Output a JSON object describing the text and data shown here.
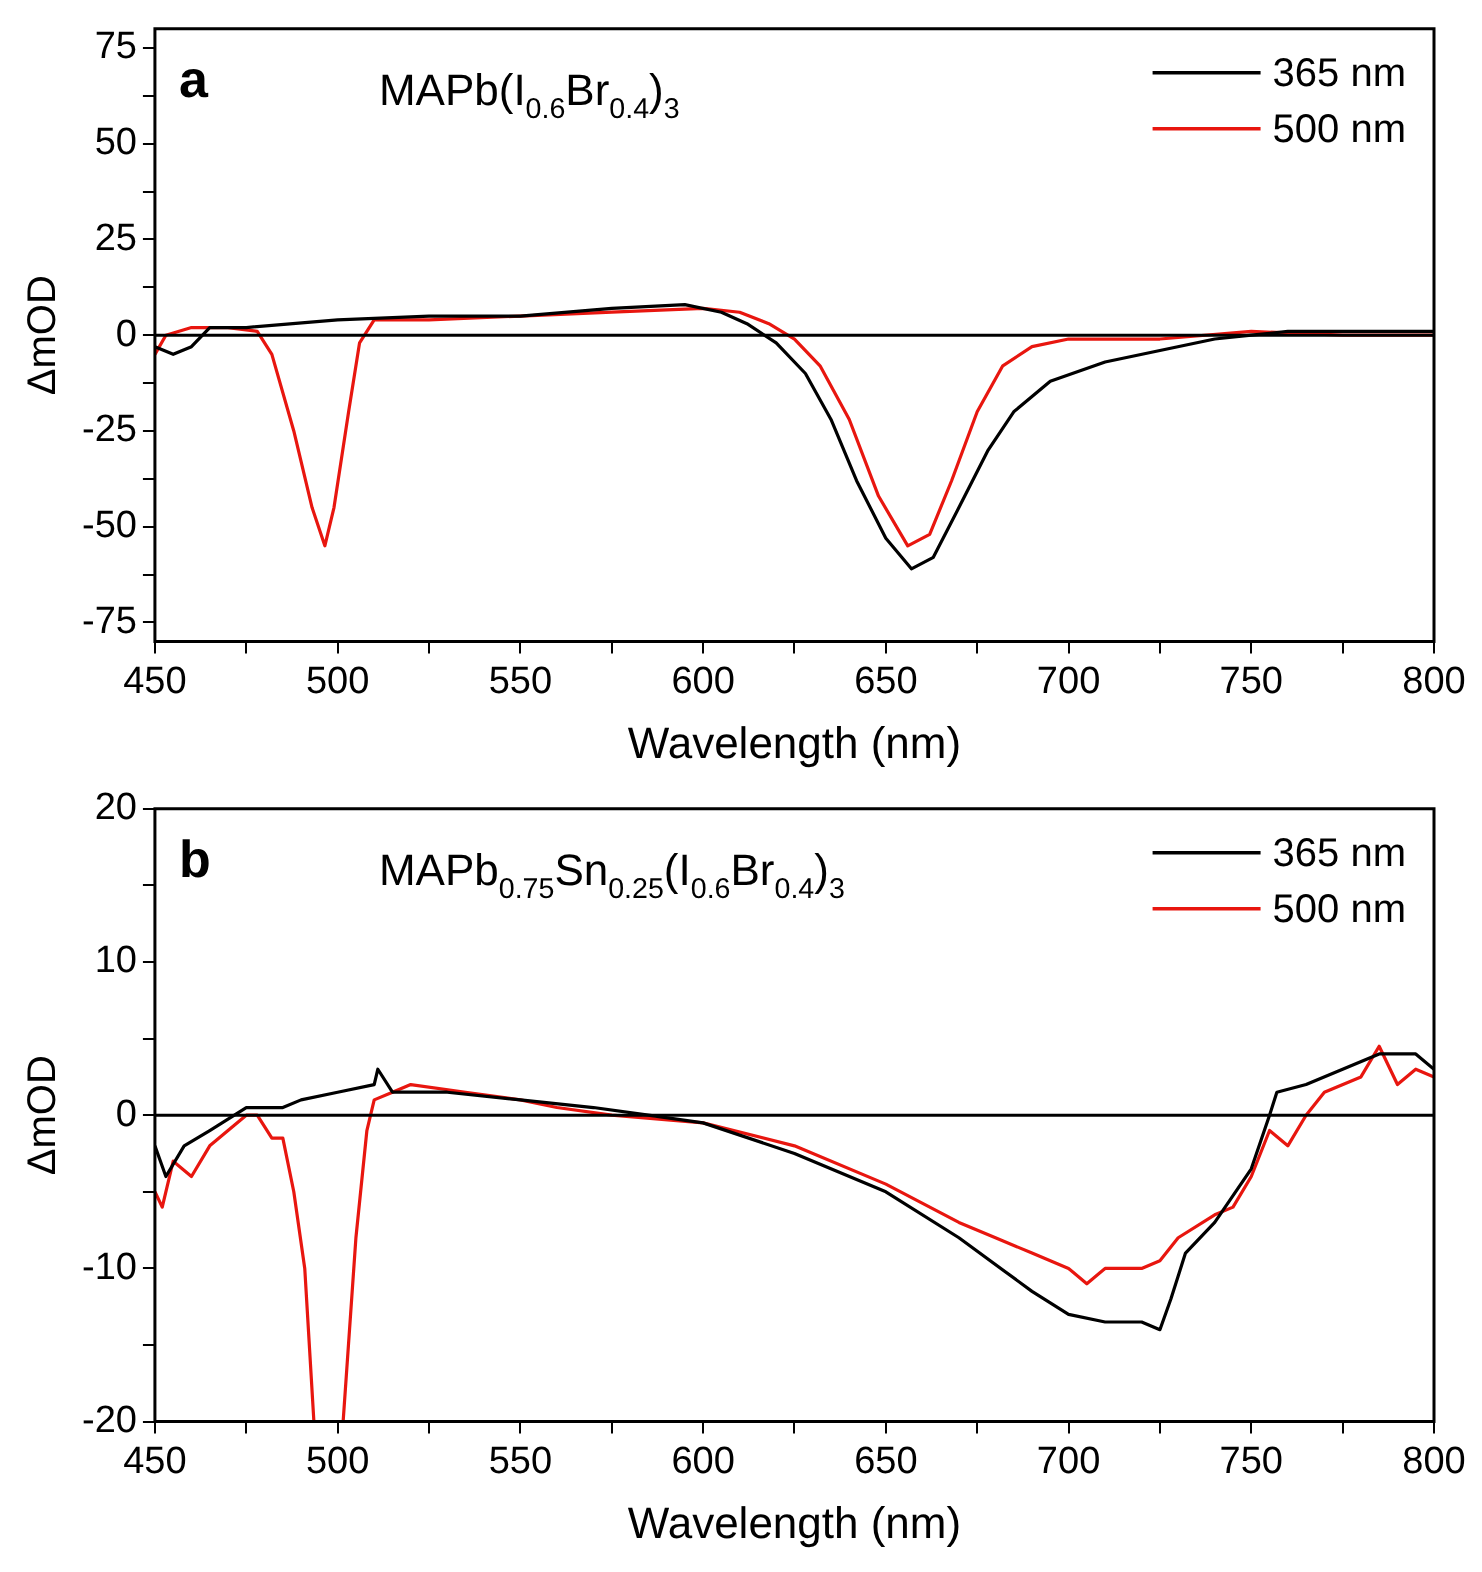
{
  "chart_data": [
    {
      "type": "line",
      "annotations": [
        "a",
        "MAPb(I$_{0.6}$Br$_{0.4}$)$_{3}$"
      ],
      "xlabel": "Wavelength (nm)",
      "ylabel": "ΔmOD",
      "xlim": [
        450,
        800
      ],
      "ylim": [
        -80,
        80
      ],
      "xticks": [
        450,
        {
          "value": 475,
          "label": null
        },
        500,
        {
          "value": 525,
          "label": null
        },
        550,
        {
          "value": 575,
          "label": null
        },
        600,
        {
          "value": 625,
          "label": null
        },
        650,
        {
          "value": 675,
          "label": null
        },
        700,
        {
          "value": 725,
          "label": null
        },
        750,
        {
          "value": 775,
          "label": null
        },
        800
      ],
      "yticks": [
        -75,
        {
          "value": -62.5,
          "label": null
        },
        -50,
        {
          "value": -37.5,
          "label": null
        },
        -25,
        {
          "value": -12.5,
          "label": null
        },
        0,
        {
          "value": 12.5,
          "label": null
        },
        25,
        {
          "value": 37.5,
          "label": null
        },
        50,
        {
          "value": 62.5,
          "label": null
        },
        75
      ],
      "grid": false,
      "legend": "top right",
      "marker": "none",
      "line_style": "solid",
      "ref_lines": [
        {
          "axis": "y",
          "value": 0,
          "color": "#000000"
        }
      ],
      "series": [
        {
          "name": "365 nm",
          "color": "#000000",
          "x": [
            450,
            455,
            460,
            465,
            475,
            500,
            525,
            550,
            575,
            595,
            605,
            612,
            620,
            628,
            635,
            642,
            650,
            657,
            663,
            670,
            678,
            685,
            695,
            710,
            725,
            740,
            750,
            760,
            775,
            790,
            800
          ],
          "values": [
            -3,
            -5,
            -3,
            2,
            2,
            4,
            5,
            5,
            7,
            8,
            6,
            3,
            -2,
            -10,
            -22,
            -38,
            -53,
            -61,
            -58,
            -45,
            -30,
            -20,
            -12,
            -7,
            -4,
            -1,
            0,
            1,
            1,
            1,
            1
          ]
        },
        {
          "name": "500 nm",
          "color": "#e8160f",
          "x": [
            450,
            453,
            460,
            470,
            478,
            482,
            488,
            493,
            496.5,
            499,
            503,
            506,
            510,
            525,
            550,
            575,
            600,
            610,
            618,
            625,
            632,
            640,
            648,
            656,
            662,
            668,
            675,
            682,
            690,
            700,
            725,
            750,
            775,
            800
          ],
          "values": [
            -5,
            0,
            2,
            2,
            1,
            -5,
            -25,
            -45,
            -55,
            -45,
            -20,
            -2,
            4,
            4,
            5,
            6,
            7,
            6,
            3,
            -1,
            -8,
            -22,
            -42,
            -55,
            -52,
            -38,
            -20,
            -8,
            -3,
            -1,
            -1,
            1,
            0,
            0
          ]
        }
      ]
    },
    {
      "type": "line",
      "annotations": [
        "b",
        "MAPb$_{0.75}$Sn$_{0.25}$(I$_{0.6}$Br$_{0.4}$)$_{3}$"
      ],
      "xlabel": "Wavelength (nm)",
      "ylabel": "ΔmOD",
      "xlim": [
        450,
        800
      ],
      "ylim": [
        -20,
        20
      ],
      "xticks": [
        450,
        {
          "value": 475,
          "label": null
        },
        500,
        {
          "value": 525,
          "label": null
        },
        550,
        {
          "value": 575,
          "label": null
        },
        600,
        {
          "value": 625,
          "label": null
        },
        650,
        {
          "value": 675,
          "label": null
        },
        700,
        {
          "value": 725,
          "label": null
        },
        750,
        {
          "value": 775,
          "label": null
        },
        800
      ],
      "yticks": [
        -20,
        {
          "value": -15,
          "label": null
        },
        -10,
        {
          "value": -5,
          "label": null
        },
        0,
        {
          "value": 5,
          "label": null
        },
        10,
        {
          "value": 15,
          "label": null
        },
        20
      ],
      "grid": false,
      "legend": "top right",
      "marker": "none",
      "line_style": "solid",
      "ref_lines": [
        {
          "axis": "y",
          "value": 0,
          "color": "#000000"
        }
      ],
      "series": [
        {
          "name": "365 nm",
          "color": "#000000",
          "x": [
            450,
            453,
            458,
            465,
            475,
            485,
            490,
            500,
            510,
            511,
            515,
            530,
            550,
            570,
            585,
            600,
            625,
            650,
            670,
            690,
            700,
            710,
            720,
            725,
            728,
            732,
            740,
            750,
            755,
            757,
            765,
            775,
            785,
            795,
            800
          ],
          "values": [
            -2,
            -4,
            -2,
            -1,
            0.5,
            0.5,
            1,
            1.5,
            2,
            3,
            1.5,
            1.5,
            1,
            0.5,
            0,
            -0.5,
            -2.5,
            -5,
            -8,
            -11.5,
            -13,
            -13.5,
            -13.5,
            -14,
            -12,
            -9,
            -7,
            -3.5,
            0,
            1.5,
            2,
            3,
            4,
            4,
            3
          ]
        },
        {
          "name": "500 nm",
          "color": "#e8160f",
          "x": [
            450,
            452,
            455,
            460,
            465,
            470,
            475,
            478,
            482,
            485,
            488,
            491,
            493.5,
            497,
            501.5,
            505,
            508,
            510,
            515,
            520,
            535,
            550,
            560,
            575,
            600,
            625,
            650,
            670,
            680,
            690,
            700,
            705,
            710,
            720,
            725,
            730,
            740,
            745,
            750,
            755,
            760,
            765,
            770,
            780,
            785,
            790,
            795,
            800
          ],
          "values": [
            -5,
            -6,
            -3,
            -4,
            -2,
            -1,
            0,
            0,
            -1.5,
            -1.5,
            -5,
            -10,
            -20,
            null,
            -20,
            -8,
            -1,
            1,
            1.5,
            2,
            1.5,
            1,
            0.5,
            0,
            -0.5,
            -2,
            -4.5,
            -7,
            -8,
            -9,
            -10,
            -11,
            -10,
            -10,
            -9.5,
            -8,
            -6.5,
            -6,
            -4,
            -1,
            -2,
            0,
            1.5,
            2.5,
            4.5,
            2,
            3,
            2.5
          ]
        }
      ]
    }
  ]
}
